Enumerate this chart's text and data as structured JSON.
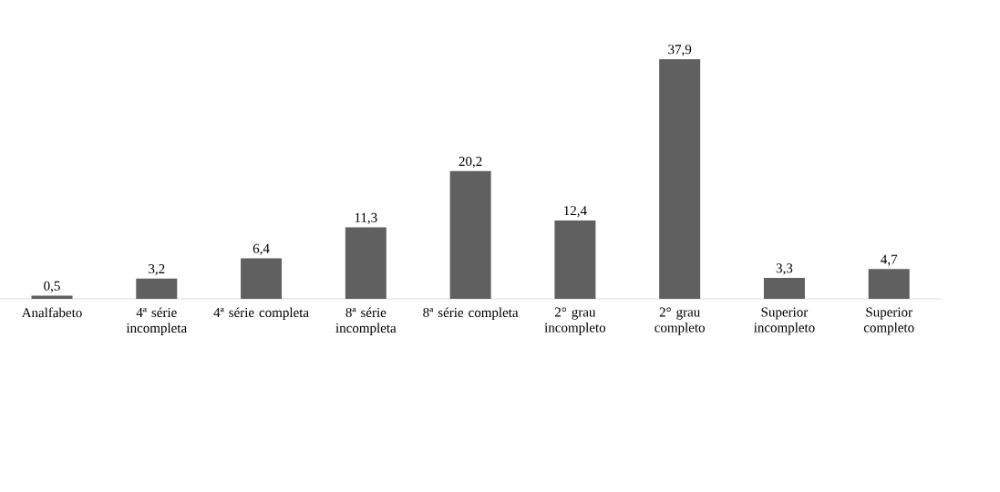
{
  "chart_data": {
    "type": "bar",
    "categories": [
      "Analfabeto",
      "4ª série incompleta",
      "4ª série completa",
      "8ª série incompleta",
      "8ª série completa",
      "2° grau incompleto",
      "2° grau completo",
      "Superior incompleto",
      "Superior completo"
    ],
    "values": [
      0.5,
      3.2,
      6.4,
      11.3,
      20.2,
      12.4,
      37.9,
      3.3,
      4.7
    ],
    "value_labels": [
      "0,5",
      "3,2",
      "6,4",
      "11,3",
      "20,2",
      "12,4",
      "37,9",
      "3,3",
      "4,7"
    ],
    "color": "#606060"
  }
}
